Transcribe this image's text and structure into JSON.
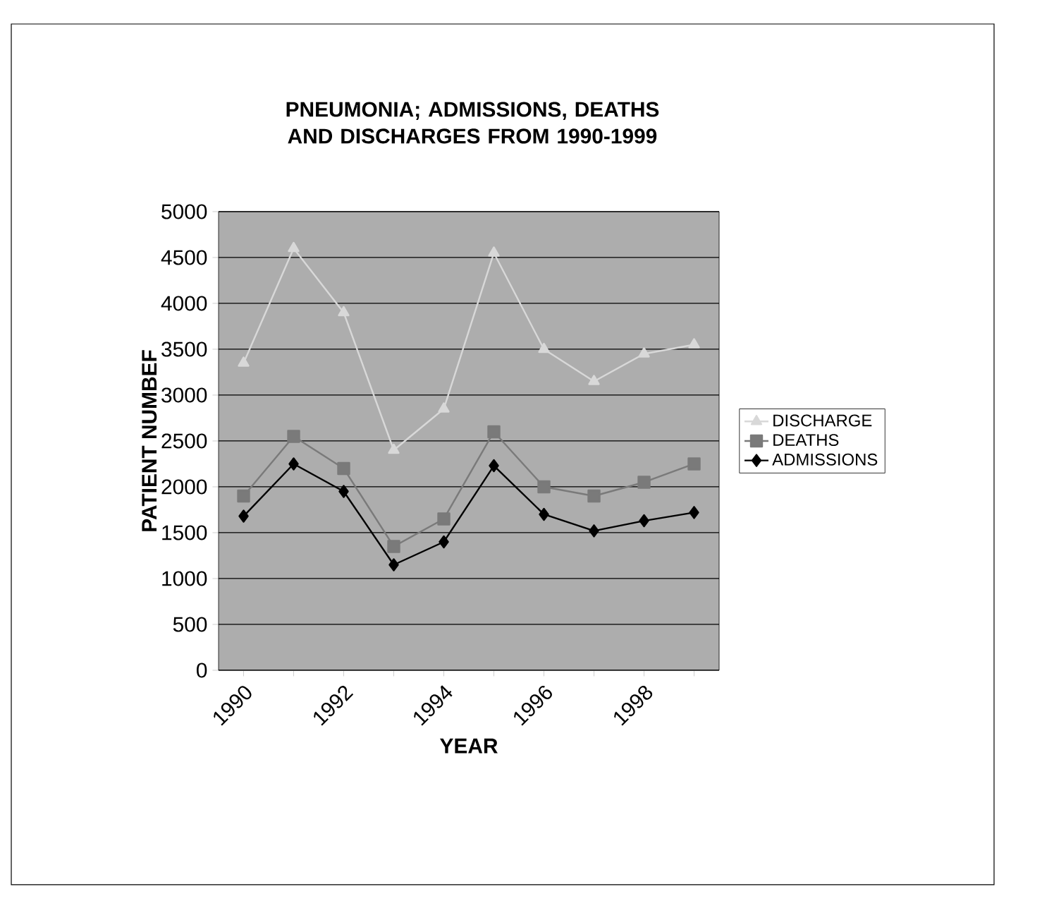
{
  "chart_data": {
    "type": "line",
    "title": "PNEUMONIA; ADMISSIONS, DEATHS AND DISCHARGES FROM 1990-1999",
    "xlabel": "YEAR",
    "ylabel": "PATIENT NUMBEF",
    "categories": [
      "1990",
      null,
      "1992",
      null,
      "1994",
      null,
      "1996",
      null,
      "1998",
      null
    ],
    "series": [
      {
        "name": "DISCHARGE",
        "color": "#d8d8d8",
        "marker": "triangle",
        "values": [
          3350,
          4600,
          3900,
          2400,
          2850,
          4550,
          3500,
          3150,
          3450,
          3550
        ]
      },
      {
        "name": "DEATHS",
        "color": "#7a7a7a",
        "marker": "square",
        "values": [
          1900,
          2550,
          2200,
          1350,
          1650,
          2600,
          2000,
          1900,
          2050,
          2250
        ]
      },
      {
        "name": "ADMISSIONS",
        "color": "#000000",
        "marker": "diamond",
        "values": [
          1680,
          2250,
          1950,
          1150,
          1400,
          2230,
          1700,
          1520,
          1630,
          1720
        ]
      }
    ],
    "ylim": [
      0,
      5000
    ],
    "yticks": [
      0,
      500,
      1000,
      1500,
      2000,
      2500,
      3000,
      3500,
      4000,
      4500,
      5000
    ],
    "grid": "y",
    "legend": "right",
    "line_style": "solid"
  }
}
